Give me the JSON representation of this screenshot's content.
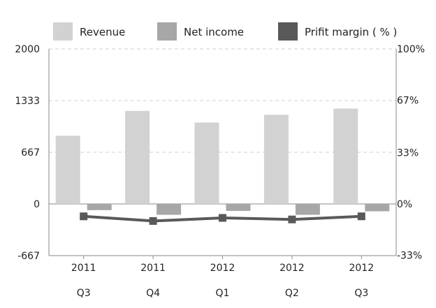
{
  "chart_data": {
    "type": "bar",
    "legend": {
      "position": "top",
      "entries": [
        {
          "label": "Revenue",
          "color": "#d2d2d2"
        },
        {
          "label": "Net income",
          "color": "#a7a7a7"
        },
        {
          "label": "Prifit margin ( % )",
          "color": "#595959"
        }
      ]
    },
    "categories": [
      {
        "year": "2011",
        "quarter": "Q3"
      },
      {
        "year": "2011",
        "quarter": "Q4"
      },
      {
        "year": "2012",
        "quarter": "Q1"
      },
      {
        "year": "2012",
        "quarter": "Q2"
      },
      {
        "year": "2012",
        "quarter": "Q3"
      }
    ],
    "series": [
      {
        "name": "Revenue",
        "kind": "bar",
        "axis": "left",
        "color": "#d2d2d2",
        "values": [
          880,
          1200,
          1050,
          1150,
          1230
        ]
      },
      {
        "name": "Net income",
        "kind": "bar",
        "axis": "left",
        "color": "#a7a7a7",
        "values": [
          -80,
          -140,
          -90,
          -140,
          -95
        ]
      },
      {
        "name": "Prifit margin ( % )",
        "kind": "line",
        "axis": "right",
        "color": "#595959",
        "values": [
          -8,
          -11,
          -9,
          -10,
          -8
        ]
      }
    ],
    "y_left": {
      "min": -667,
      "max": 2000,
      "ticks": [
        2000,
        1333,
        667,
        0,
        -667
      ],
      "tick_labels": [
        "2000",
        "1333",
        "667",
        "0",
        "-667"
      ]
    },
    "y_right": {
      "min": -33,
      "max": 100,
      "ticks": [
        100,
        67,
        33,
        0,
        -33
      ],
      "tick_labels": [
        "100%",
        "67%",
        "33%",
        "0%",
        "-33%"
      ]
    },
    "grid": true
  }
}
